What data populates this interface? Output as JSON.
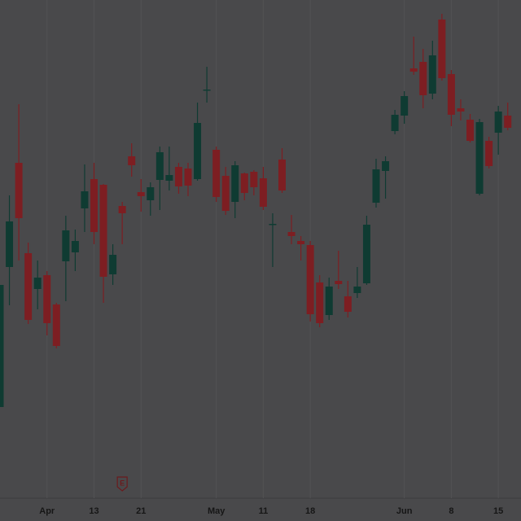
{
  "chart_data": {
    "type": "candlestick",
    "categories": [
      null,
      null,
      null,
      null,
      null,
      "Apr",
      null,
      null,
      null,
      null,
      "13",
      null,
      null,
      null,
      null,
      "21",
      null,
      null,
      null,
      null,
      null,
      null,
      null,
      "May",
      null,
      null,
      null,
      null,
      "11",
      null,
      null,
      null,
      null,
      "18",
      null,
      null,
      null,
      null,
      null,
      null,
      null,
      null,
      null,
      "Jun",
      null,
      null,
      null,
      null,
      "8",
      null,
      null,
      null,
      null,
      "15",
      null
    ],
    "open": [
      76,
      86.32,
      94,
      87.34,
      84.7,
      85.72,
      83.56,
      86.74,
      87.4,
      90.64,
      92.8,
      92.38,
      85.78,
      90.82,
      94.48,
      91.84,
      91.24,
      92.74,
      92.68,
      93.7,
      93.58,
      92.8,
      99.34,
      94.96,
      93.04,
      91.12,
      93.22,
      93.34,
      92.86,
      89.44,
      94.24,
      88.9,
      88.24,
      87.94,
      85.18,
      82.78,
      85.3,
      84.16,
      84.4,
      85.12,
      91.06,
      93.4,
      96.34,
      97.48,
      100.96,
      101.44,
      99.1,
      104.56,
      100.54,
      98.02,
      97.18,
      91.72,
      95.62,
      96.22,
      97.48
    ],
    "high": [
      85,
      91.6,
      98.32,
      88.12,
      86.8,
      86.02,
      83.68,
      90.1,
      89.08,
      93.88,
      94,
      92.44,
      88,
      91.12,
      95.44,
      92.8,
      92.56,
      95.2,
      95.2,
      94,
      94,
      98.44,
      101.08,
      95.2,
      93.7,
      94.12,
      93.28,
      93.46,
      93.7,
      90.28,
      95.08,
      90.16,
      88.6,
      88.24,
      85.72,
      85.54,
      87.52,
      85.3,
      86.32,
      90.1,
      94.3,
      94.48,
      97.9,
      99.28,
      103.3,
      102.4,
      103,
      104.98,
      100.84,
      98.68,
      97.6,
      97.24,
      95.92,
      98.2,
      98.44
    ],
    "low": [
      76,
      83.5,
      86.8,
      82.12,
      83.2,
      81.28,
      80.32,
      83.8,
      86.02,
      88.9,
      88,
      83.68,
      85,
      88,
      92.98,
      90.4,
      90.1,
      90.52,
      91.96,
      91.72,
      91.54,
      92.68,
      98.44,
      91.12,
      90.16,
      89.92,
      91.24,
      91.6,
      90.52,
      86.32,
      91.78,
      88,
      86.8,
      82.3,
      81.88,
      82.42,
      84.7,
      82.6,
      84.04,
      85,
      90.7,
      91.36,
      96.1,
      96.88,
      100.48,
      98.02,
      98.68,
      100.06,
      96.7,
      97.12,
      95.5,
      91.6,
      93.58,
      94.6,
      96.4
    ],
    "close": [
      85,
      89.68,
      89.92,
      82.42,
      85.54,
      82.18,
      80.5,
      89.02,
      88.24,
      91.9,
      88.9,
      85.6,
      87.22,
      90.28,
      93.82,
      91.54,
      92.2,
      94.78,
      93.1,
      92.26,
      92.32,
      96.94,
      99.4,
      91.48,
      90.46,
      93.82,
      91.78,
      92.2,
      90.76,
      89.5,
      91.96,
      88.6,
      88,
      82.84,
      82.18,
      84.88,
      85.06,
      83.02,
      84.88,
      89.44,
      93.52,
      94.12,
      97.54,
      98.92,
      100.72,
      98.98,
      101.92,
      100.24,
      97.54,
      97.78,
      95.62,
      97,
      93.76,
      97.78,
      96.58
    ],
    "up_color": "#0f3b32",
    "down_color": "#7d1e22",
    "ylim": [
      70,
      106
    ],
    "events": [
      {
        "category_index": 13,
        "label": "E"
      }
    ]
  }
}
